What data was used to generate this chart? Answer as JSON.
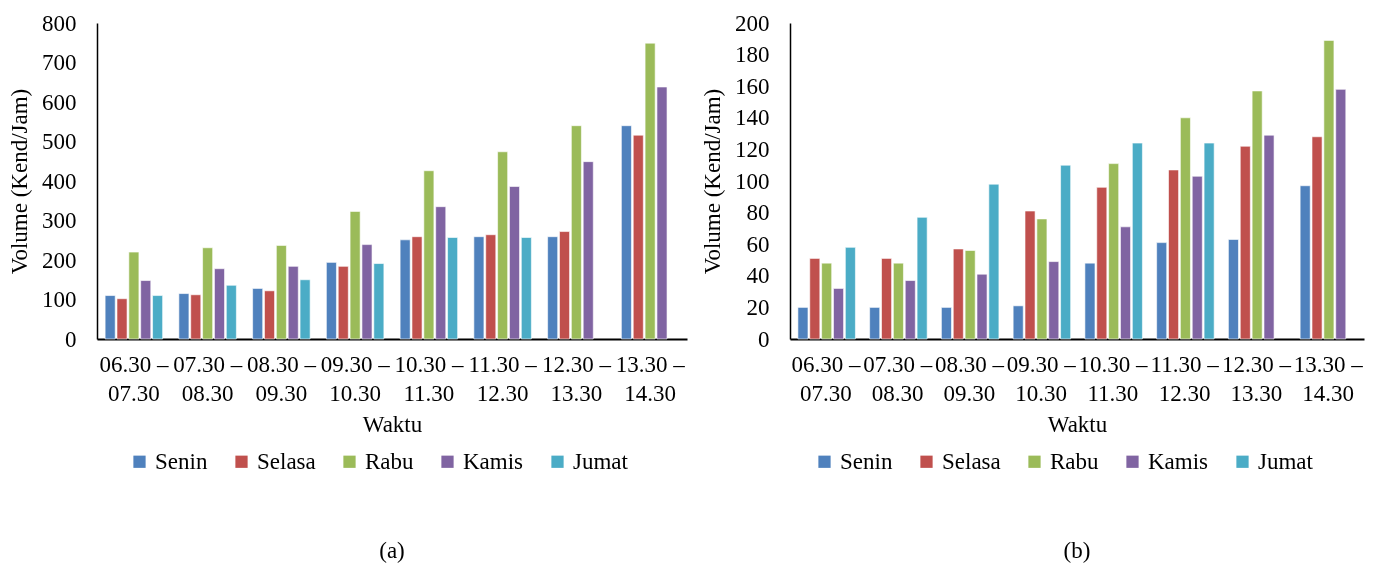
{
  "chart_data": [
    {
      "type": "bar",
      "xlabel": "Waktu",
      "ylabel": "Volume (Kend/Jam)",
      "annotations": [
        "(a)"
      ],
      "categories": [
        "06.30 – 07.30",
        "07.30 – 08.30",
        "08.30 – 09.30",
        "09.30 – 10.30",
        "10.30 – 11.30",
        "11.30 – 12.30",
        "12.30 – 13.30",
        "13.30 – 14.30"
      ],
      "series": [
        {
          "name": "Senin",
          "color": "#4f81bd",
          "values": [
            110,
            115,
            128,
            194,
            251,
            259,
            259,
            540
          ]
        },
        {
          "name": "Selasa",
          "color": "#c0504d",
          "values": [
            102,
            112,
            122,
            184,
            259,
            264,
            272,
            516
          ]
        },
        {
          "name": "Rabu",
          "color": "#9bbb59",
          "values": [
            220,
            231,
            237,
            323,
            426,
            474,
            540,
            749
          ]
        },
        {
          "name": "Kamis",
          "color": "#8064a2",
          "values": [
            148,
            178,
            184,
            239,
            335,
            386,
            449,
            638
          ]
        },
        {
          "name": "Jumat",
          "color": "#4bacc6",
          "values": [
            110,
            136,
            150,
            191,
            257,
            257,
            null,
            null
          ]
        }
      ],
      "ylim": [
        0,
        800
      ],
      "yticks": [
        0,
        100,
        200,
        300,
        400,
        500,
        600,
        700,
        800
      ],
      "legend": "bottom"
    },
    {
      "type": "bar",
      "xlabel": "Waktu",
      "ylabel": "Volume (Kend/Jam)",
      "annotations": [
        "(b)"
      ],
      "categories": [
        "06.30 – 07.30",
        "07.30 – 08.30",
        "08.30 – 09.30",
        "09.30 – 10.30",
        "10.30 – 11.30",
        "11.30 – 12.30",
        "12.30 – 13.30",
        "13.30 – 14.30"
      ],
      "series": [
        {
          "name": "Senin",
          "color": "#4f81bd",
          "values": [
            20,
            20,
            20,
            21,
            48,
            61,
            63,
            97
          ]
        },
        {
          "name": "Selasa",
          "color": "#c0504d",
          "values": [
            51,
            51,
            57,
            81,
            96,
            107,
            122,
            128
          ]
        },
        {
          "name": "Rabu",
          "color": "#9bbb59",
          "values": [
            48,
            48,
            56,
            76,
            111,
            140,
            157,
            189
          ]
        },
        {
          "name": "Kamis",
          "color": "#8064a2",
          "values": [
            32,
            37,
            41,
            49,
            71,
            103,
            129,
            158
          ]
        },
        {
          "name": "Jumat",
          "color": "#4bacc6",
          "values": [
            58,
            77,
            98,
            110,
            124,
            124,
            null,
            null
          ]
        }
      ],
      "ylim": [
        0,
        200
      ],
      "yticks": [
        0,
        20,
        40,
        60,
        80,
        100,
        120,
        140,
        160,
        180,
        200
      ],
      "legend": "bottom"
    }
  ]
}
